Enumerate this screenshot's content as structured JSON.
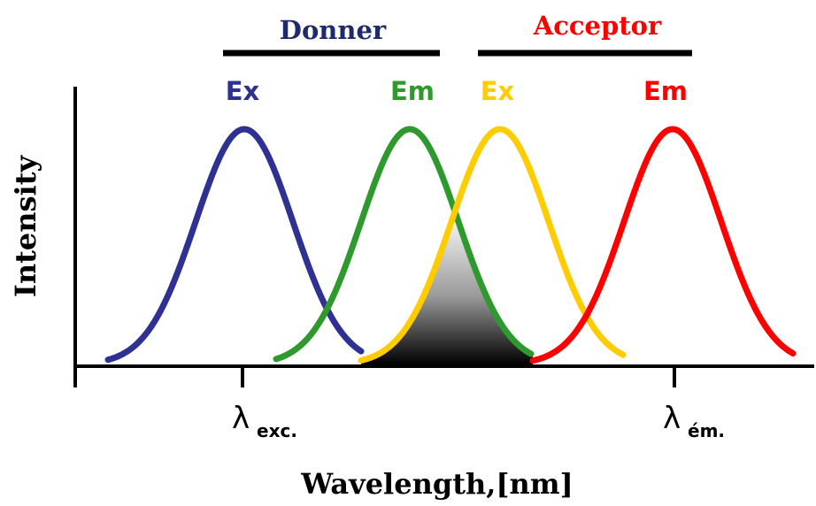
{
  "groups": {
    "donor": {
      "label": "Donner",
      "color": "#1f2a6b"
    },
    "acceptor": {
      "label": "Acceptor",
      "color": "#ff0000"
    }
  },
  "peaks": {
    "donor_ex": {
      "label": "Ex",
      "color": "#2e3192"
    },
    "donor_em": {
      "label": "Em",
      "color": "#2e9a2e"
    },
    "acceptor_ex": {
      "label": "Ex",
      "color": "#ffcc00"
    },
    "acceptor_em": {
      "label": "Em",
      "color": "#ff0000"
    }
  },
  "axes": {
    "y_title": "Intensity",
    "x_title": "Wavelength,[nm]"
  },
  "markers": {
    "excitation": {
      "symbol": "λ",
      "subscript": "exc."
    },
    "emission": {
      "symbol": "λ",
      "subscript": "ém."
    }
  }
}
